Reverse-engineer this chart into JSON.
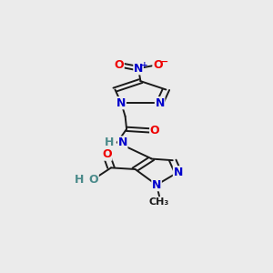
{
  "background_color": "#ebebeb",
  "bond_color": "#1a1a1a",
  "atom_colors": {
    "N": "#0000cc",
    "O": "#ee0000",
    "C": "#1a1a1a",
    "H": "#4a8a8a"
  },
  "figsize": [
    3.0,
    3.0
  ],
  "dpi": 100
}
